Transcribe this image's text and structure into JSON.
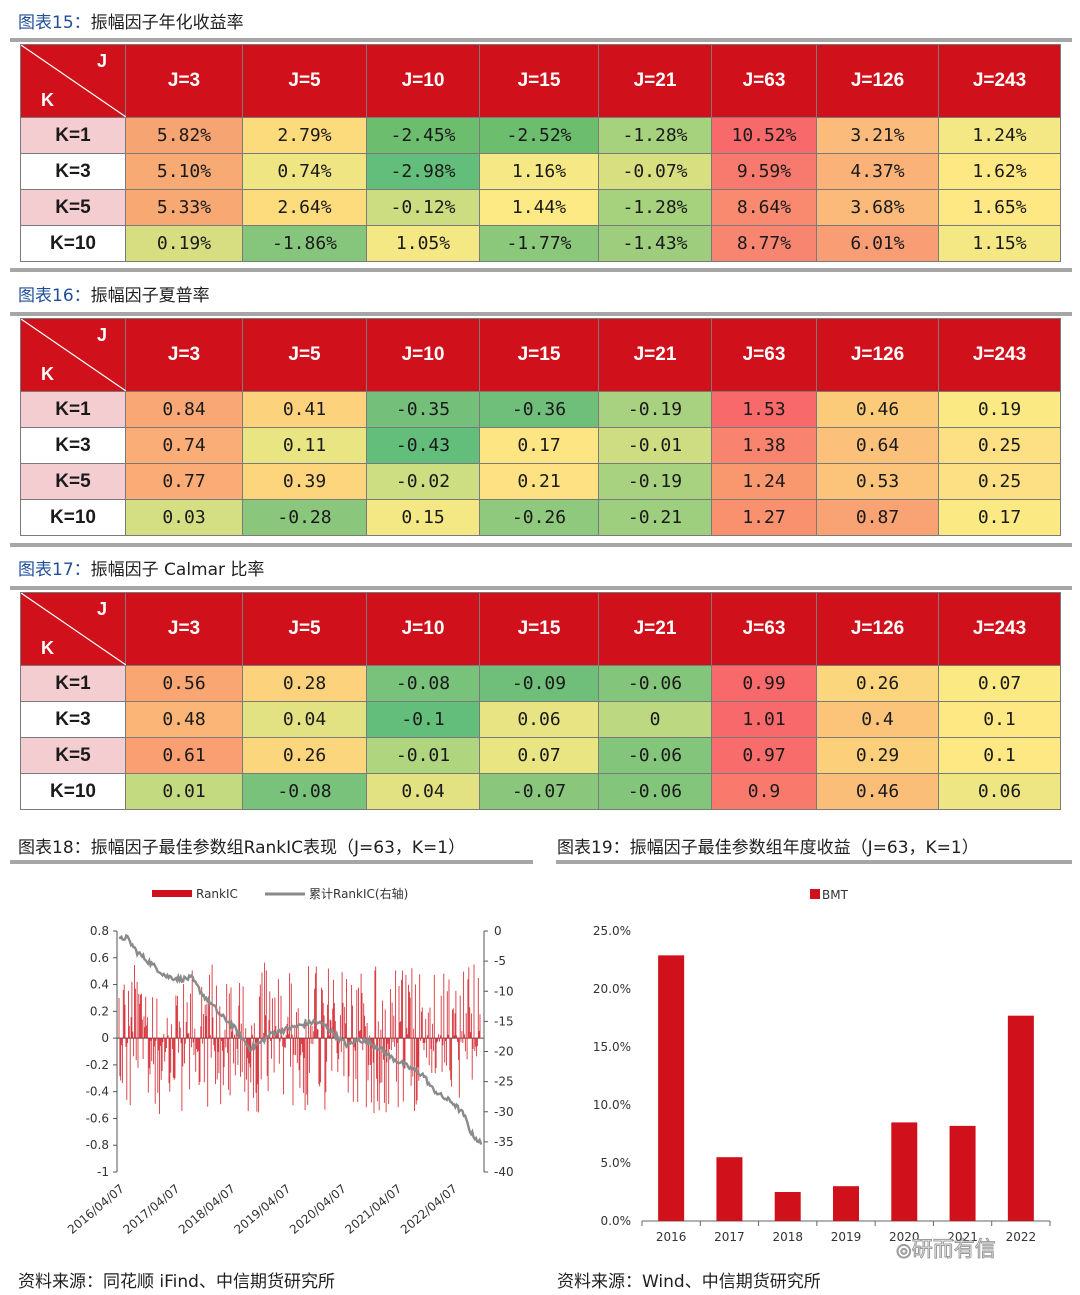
{
  "tables": [
    {
      "title_prefix": "图表15：",
      "title": "振幅因子年化收益率",
      "corner_j": "J",
      "corner_k": "K",
      "cols": [
        "J=3",
        "J=5",
        "J=10",
        "J=15",
        "J=21",
        "J=63",
        "J=126",
        "J=243"
      ],
      "rows": [
        {
          "label": "K=1",
          "cells": [
            "5.82%",
            "2.79%",
            "-2.45%",
            "-2.52%",
            "-1.28%",
            "10.52%",
            "3.21%",
            "1.24%"
          ]
        },
        {
          "label": "K=3",
          "cells": [
            "5.10%",
            "0.74%",
            "-2.98%",
            "1.16%",
            "-0.07%",
            "9.59%",
            "4.37%",
            "1.62%"
          ]
        },
        {
          "label": "K=5",
          "cells": [
            "5.33%",
            "2.64%",
            "-0.12%",
            "1.44%",
            "-1.28%",
            "8.64%",
            "3.68%",
            "1.65%"
          ]
        },
        {
          "label": "K=10",
          "cells": [
            "0.19%",
            "-1.86%",
            "1.05%",
            "-1.77%",
            "-1.43%",
            "8.77%",
            "6.01%",
            "1.15%"
          ]
        }
      ],
      "colors": [
        [
          "#f6a572",
          "#fcdb7c",
          "#6dbd6e",
          "#6dbd6e",
          "#a6d27e",
          "#f8696b",
          "#fbbb7b",
          "#f4e884"
        ],
        [
          "#f8aa75",
          "#f0e583",
          "#63be7b",
          "#f6e985",
          "#d8df81",
          "#f87a6e",
          "#fab279",
          "#fde884"
        ],
        [
          "#f7a873",
          "#fcdc7d",
          "#ccdc81",
          "#fdea84",
          "#a6d27e",
          "#f98a70",
          "#fbb97a",
          "#fde884"
        ],
        [
          "#d7de81",
          "#86c67c",
          "#f4e884",
          "#8bc87c",
          "#9ece7d",
          "#f8856f",
          "#f99d74",
          "#f4e884"
        ]
      ]
    },
    {
      "title_prefix": "图表16：",
      "title": "振幅因子夏普率",
      "corner_j": "J",
      "corner_k": "K",
      "cols": [
        "J=3",
        "J=5",
        "J=10",
        "J=15",
        "J=21",
        "J=63",
        "J=126",
        "J=243"
      ],
      "rows": [
        {
          "label": "K=1",
          "cells": [
            "0.84",
            "0.41",
            "-0.35",
            "-0.36",
            "-0.19",
            "1.53",
            "0.46",
            "0.19"
          ]
        },
        {
          "label": "K=3",
          "cells": [
            "0.74",
            "0.11",
            "-0.43",
            "0.17",
            "-0.01",
            "1.38",
            "0.64",
            "0.25"
          ]
        },
        {
          "label": "K=5",
          "cells": [
            "0.77",
            "0.39",
            "-0.02",
            "0.21",
            "-0.19",
            "1.24",
            "0.53",
            "0.25"
          ]
        },
        {
          "label": "K=10",
          "cells": [
            "0.03",
            "-0.28",
            "0.15",
            "-0.26",
            "-0.21",
            "1.27",
            "0.87",
            "0.17"
          ]
        }
      ],
      "colors": [
        [
          "#f9a875",
          "#fcd27c",
          "#74c07b",
          "#6fbe7a",
          "#a8d27f",
          "#f8696b",
          "#fbcb7a",
          "#fbe983"
        ],
        [
          "#faad76",
          "#e9e583",
          "#63be7b",
          "#fde583",
          "#cedd82",
          "#f8836e",
          "#fbc07a",
          "#fde083"
        ],
        [
          "#faab76",
          "#fcd57c",
          "#cddd82",
          "#fde183",
          "#a8d27f",
          "#f9986f",
          "#fbc47a",
          "#fde083"
        ],
        [
          "#d3df82",
          "#8ac77d",
          "#f4e884",
          "#8fc97d",
          "#9ecf7e",
          "#f9916f",
          "#f9a274",
          "#fbe983"
        ]
      ]
    },
    {
      "title_prefix": "图表17：",
      "title": "振幅因子 Calmar 比率",
      "corner_j": "J",
      "corner_k": "K",
      "cols": [
        "J=3",
        "J=5",
        "J=10",
        "J=15",
        "J=21",
        "J=63",
        "J=126",
        "J=243"
      ],
      "rows": [
        {
          "label": "K=1",
          "cells": [
            "0.56",
            "0.28",
            "-0.08",
            "-0.09",
            "-0.06",
            "0.99",
            "0.26",
            "0.07"
          ]
        },
        {
          "label": "K=3",
          "cells": [
            "0.48",
            "0.04",
            "-0.1",
            "0.06",
            "0",
            "1.01",
            "0.4",
            "0.1"
          ]
        },
        {
          "label": "K=5",
          "cells": [
            "0.61",
            "0.26",
            "-0.01",
            "0.07",
            "-0.06",
            "0.97",
            "0.29",
            "0.1"
          ]
        },
        {
          "label": "K=10",
          "cells": [
            "0.01",
            "-0.08",
            "0.04",
            "-0.07",
            "-0.06",
            "0.9",
            "0.46",
            "0.06"
          ]
        }
      ],
      "colors": [
        [
          "#f9a673",
          "#fcd27c",
          "#78c27b",
          "#6fbe7a",
          "#84c57c",
          "#f8696b",
          "#fcd67c",
          "#fbe983"
        ],
        [
          "#fab577",
          "#e2e283",
          "#63be7b",
          "#e8e483",
          "#bcd880",
          "#f8696b",
          "#fbc479",
          "#fde883"
        ],
        [
          "#f99f72",
          "#fcd67c",
          "#b0d57f",
          "#eae583",
          "#84c57c",
          "#f86d6b",
          "#fccf7b",
          "#fde883"
        ],
        [
          "#c3da80",
          "#78c27b",
          "#e2e283",
          "#8ac77c",
          "#84c57c",
          "#f97a6d",
          "#fbbe79",
          "#ede683"
        ]
      ]
    }
  ],
  "chart18": {
    "title_prefix": "图表18：",
    "title": "振幅因子最佳参数组RankIC表现（J=63，K=1）",
    "source": "资料来源：同花顺 iFind、中信期货研究所",
    "chart_data": {
      "type": "bar+line",
      "legend": [
        "RankIC",
        "累计RankIC(右轴)"
      ],
      "legend_placement": "top",
      "left_axis": {
        "range": [
          -1,
          0.8
        ],
        "ticks": [
          "0.8",
          "0.6",
          "0.4",
          "0.2",
          "0",
          "-0.2",
          "-0.4",
          "-0.6",
          "-0.8",
          "-1"
        ]
      },
      "right_axis": {
        "range": [
          -40,
          0
        ],
        "ticks": [
          "0",
          "-5",
          "-10",
          "-15",
          "-20",
          "-25",
          "-30",
          "-35",
          "-40"
        ]
      },
      "x_ticks": [
        "2016/04/07",
        "2017/04/07",
        "2018/04/07",
        "2019/04/07",
        "2020/04/07",
        "2021/04/07",
        "2022/04/07"
      ],
      "cumulative_rankic_anchors": [
        {
          "t": 0.0,
          "v": -1.5
        },
        {
          "t": 0.02,
          "v": -1.0
        },
        {
          "t": 0.05,
          "v": -3.5
        },
        {
          "t": 0.09,
          "v": -5.5
        },
        {
          "t": 0.13,
          "v": -7.5
        },
        {
          "t": 0.17,
          "v": -8.0
        },
        {
          "t": 0.2,
          "v": -7.8
        },
        {
          "t": 0.23,
          "v": -10.5
        },
        {
          "t": 0.26,
          "v": -12.5
        },
        {
          "t": 0.28,
          "v": -14.0
        },
        {
          "t": 0.31,
          "v": -15.5
        },
        {
          "t": 0.33,
          "v": -17.0
        },
        {
          "t": 0.36,
          "v": -19.5
        },
        {
          "t": 0.39,
          "v": -18.5
        },
        {
          "t": 0.42,
          "v": -17.0
        },
        {
          "t": 0.45,
          "v": -16.5
        },
        {
          "t": 0.48,
          "v": -16.0
        },
        {
          "t": 0.51,
          "v": -15.5
        },
        {
          "t": 0.54,
          "v": -15.0
        },
        {
          "t": 0.57,
          "v": -15.8
        },
        {
          "t": 0.6,
          "v": -17.5
        },
        {
          "t": 0.63,
          "v": -19.0
        },
        {
          "t": 0.66,
          "v": -18.0
        },
        {
          "t": 0.69,
          "v": -18.5
        },
        {
          "t": 0.72,
          "v": -19.5
        },
        {
          "t": 0.75,
          "v": -21.0
        },
        {
          "t": 0.78,
          "v": -22.0
        },
        {
          "t": 0.81,
          "v": -23.0
        },
        {
          "t": 0.84,
          "v": -24.0
        },
        {
          "t": 0.86,
          "v": -26.0
        },
        {
          "t": 0.89,
          "v": -27.5
        },
        {
          "t": 0.92,
          "v": -28.5
        },
        {
          "t": 0.95,
          "v": -30.5
        },
        {
          "t": 0.97,
          "v": -33.5
        },
        {
          "t": 1.0,
          "v": -35.5
        }
      ]
    }
  },
  "chart19": {
    "title_prefix": "图表19：",
    "title": "振幅因子最佳参数组年度收益（J=63，K=1）",
    "source": "资料来源：Wind、中信期货研究所",
    "chart_data": {
      "type": "bar",
      "legend": [
        "BMT"
      ],
      "legend_placement": "top",
      "categories": [
        "2016",
        "2017",
        "2018",
        "2019",
        "2020",
        "2021",
        "2022"
      ],
      "values": [
        22.9,
        5.5,
        2.5,
        3.0,
        8.5,
        8.2,
        17.7
      ],
      "ylim": [
        0,
        25
      ],
      "y_ticks": [
        "25.0%",
        "20.0%",
        "15.0%",
        "10.0%",
        "5.0%",
        "0.0%"
      ],
      "color": "#d0101a"
    }
  },
  "watermark": "研而有信"
}
